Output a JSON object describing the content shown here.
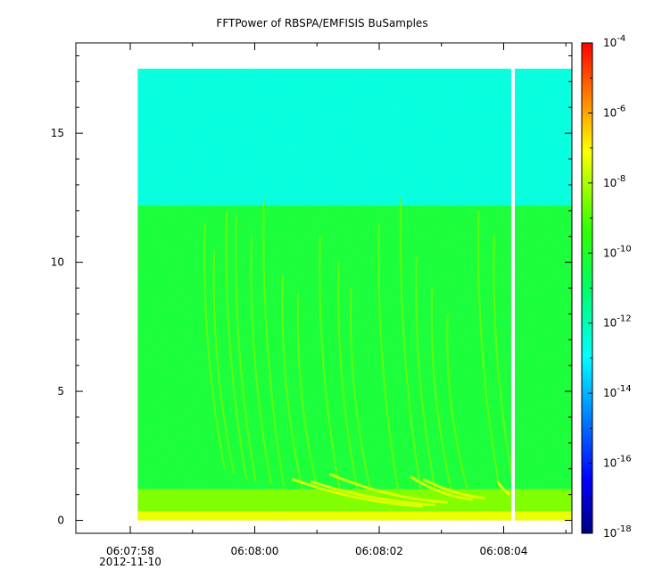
{
  "chart_data": {
    "type": "heatmap",
    "title": "FFTPower of RBSPA/EMFISIS  BuSamples",
    "xlabel": "",
    "ylabel": "",
    "x_ticks": [
      {
        "time": "06:07:58",
        "date": "2012-11-10"
      },
      {
        "time": "06:08:00",
        "date": ""
      },
      {
        "time": "06:08:02",
        "date": ""
      },
      {
        "time": "06:08:04",
        "date": ""
      }
    ],
    "y_ticks": [
      0,
      5,
      10,
      15
    ],
    "ylim": [
      -0.5,
      18.5
    ],
    "data_extent": {
      "t_start_s": 0.12,
      "t_end_s": 7.0,
      "y_max": 17.5
    },
    "gap": {
      "t_s": 6.15
    },
    "colorbar": {
      "scale": "log",
      "range_exp": [
        -18,
        -4
      ],
      "tick_exponents": [
        -4,
        -6,
        -8,
        -10,
        -12,
        -14,
        -16,
        -18
      ]
    },
    "regions": [
      {
        "y_from": 12.2,
        "y_to": 17.5,
        "level_exp": -12.6,
        "description": "background above cutoff"
      },
      {
        "y_from": 1.2,
        "y_to": 12.2,
        "level_exp": -10.3,
        "description": "mid band"
      },
      {
        "y_from": 0.0,
        "y_to": 1.2,
        "level_exp": -8.5,
        "description": "low-frequency enhancement"
      }
    ],
    "features": [
      {
        "t_s": 1.2,
        "y_top": 11.5,
        "y_bottom": 2.0
      },
      {
        "t_s": 1.35,
        "y_top": 10.5,
        "y_bottom": 1.8
      },
      {
        "t_s": 1.55,
        "y_top": 12.0,
        "y_bottom": 1.6
      },
      {
        "t_s": 1.7,
        "y_top": 11.8,
        "y_bottom": 1.5
      },
      {
        "t_s": 1.95,
        "y_top": 11.0,
        "y_bottom": 1.4
      },
      {
        "t_s": 2.15,
        "y_top": 12.4,
        "y_bottom": 1.3
      },
      {
        "t_s": 2.45,
        "y_top": 9.5,
        "y_bottom": 1.2
      },
      {
        "t_s": 2.7,
        "y_top": 8.8,
        "y_bottom": 1.1
      },
      {
        "t_s": 3.05,
        "y_top": 11.0,
        "y_bottom": 1.2
      },
      {
        "t_s": 3.35,
        "y_top": 10.0,
        "y_bottom": 1.0
      },
      {
        "t_s": 3.55,
        "y_top": 9.0,
        "y_bottom": 1.1
      },
      {
        "t_s": 4.0,
        "y_top": 11.5,
        "y_bottom": 1.0
      },
      {
        "t_s": 4.35,
        "y_top": 12.5,
        "y_bottom": 1.2
      },
      {
        "t_s": 4.6,
        "y_top": 10.2,
        "y_bottom": 1.0
      },
      {
        "t_s": 4.85,
        "y_top": 9.0,
        "y_bottom": 1.1
      },
      {
        "t_s": 5.1,
        "y_top": 8.0,
        "y_bottom": 1.2
      },
      {
        "t_s": 5.6,
        "y_top": 12.0,
        "y_bottom": 1.5
      },
      {
        "t_s": 5.85,
        "y_top": 11.0,
        "y_bottom": 1.3
      }
    ],
    "low_band_arcs": [
      {
        "t_start_s": 2.6,
        "t_end_s": 4.7,
        "y_start": 1.6,
        "y_end": 0.55
      },
      {
        "t_start_s": 2.9,
        "t_end_s": 4.9,
        "y_start": 1.5,
        "y_end": 0.6
      },
      {
        "t_start_s": 3.2,
        "t_end_s": 5.1,
        "y_start": 1.8,
        "y_end": 0.7
      },
      {
        "t_start_s": 4.5,
        "t_end_s": 5.5,
        "y_start": 1.7,
        "y_end": 0.8
      },
      {
        "t_start_s": 4.7,
        "t_end_s": 5.7,
        "y_start": 1.6,
        "y_end": 0.85
      },
      {
        "t_start_s": 5.9,
        "t_end_s": 6.1,
        "y_start": 1.5,
        "y_end": 1.0
      }
    ]
  }
}
